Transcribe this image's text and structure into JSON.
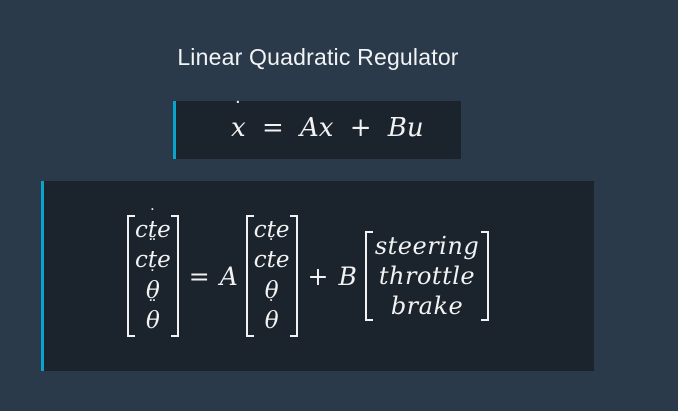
{
  "slide": {
    "title": "Linear Quadratic Regulator"
  },
  "equation_small": {
    "lhs_var": "x",
    "equals": "=",
    "term1": "Ax",
    "plus": "+",
    "term2": "Bu"
  },
  "equation_big": {
    "state_dot": [
      {
        "text": "cte",
        "dots": "˙"
      },
      {
        "text": "cte",
        "dots": "¨"
      },
      {
        "text": "θ",
        "dots": "˙"
      },
      {
        "text": "θ",
        "dots": "¨"
      }
    ],
    "equals": "=",
    "matrix_A": "A",
    "state": [
      {
        "text": "cte",
        "dots": ""
      },
      {
        "text": "cte",
        "dots": "˙"
      },
      {
        "text": "θ",
        "dots": ""
      },
      {
        "text": "θ",
        "dots": "˙"
      }
    ],
    "plus": "+",
    "matrix_B": "B",
    "controls": [
      "steering",
      "throttle",
      "brake"
    ]
  },
  "colors": {
    "background": "#2b3a4a",
    "box_background": "#1b232d",
    "accent_bar": "#0aa3c9",
    "text": "#f2f2f2"
  }
}
